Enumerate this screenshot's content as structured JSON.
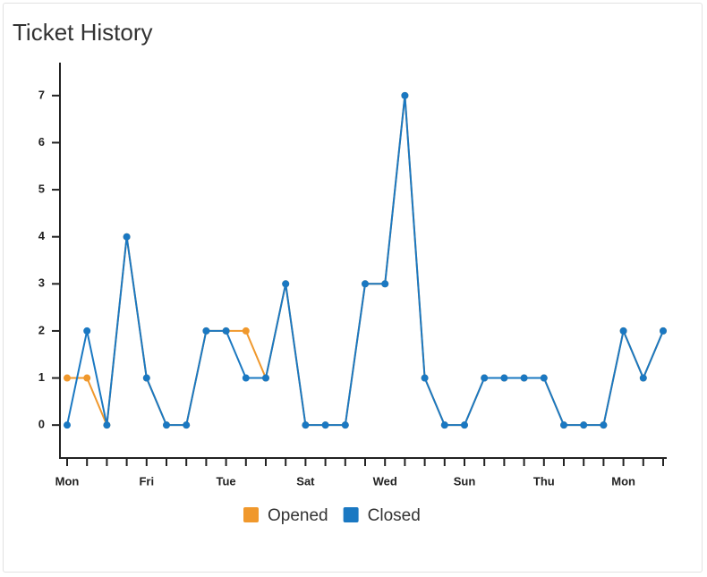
{
  "chart_data": {
    "type": "line",
    "title": "Ticket History",
    "categories": [
      "Mon",
      null,
      null,
      null,
      "Fri",
      null,
      null,
      null,
      "Tue",
      null,
      null,
      null,
      "Sat",
      null,
      null,
      null,
      "Wed",
      null,
      null,
      null,
      "Sun",
      null,
      null,
      null,
      "Thu",
      null,
      null,
      null,
      "Mon",
      null,
      null
    ],
    "series": [
      {
        "name": "Opened",
        "color": "#f0982c",
        "values": [
          1,
          1,
          0,
          4,
          1,
          0,
          0,
          2,
          2,
          2,
          1,
          3,
          0,
          0,
          0,
          3,
          3,
          7,
          1,
          0,
          0,
          1,
          1,
          1,
          1,
          0,
          0,
          0,
          2,
          1,
          2
        ]
      },
      {
        "name": "Closed",
        "color": "#1a78c2",
        "values": [
          0,
          2,
          0,
          4,
          1,
          0,
          0,
          2,
          2,
          1,
          1,
          3,
          0,
          0,
          0,
          3,
          3,
          7,
          1,
          0,
          0,
          1,
          1,
          1,
          1,
          0,
          0,
          0,
          2,
          1,
          2
        ]
      }
    ],
    "ylim": [
      -0.7,
      7.7
    ],
    "yticks": [
      0,
      1,
      2,
      3,
      4,
      5,
      6,
      7
    ],
    "legend": "bottom"
  }
}
